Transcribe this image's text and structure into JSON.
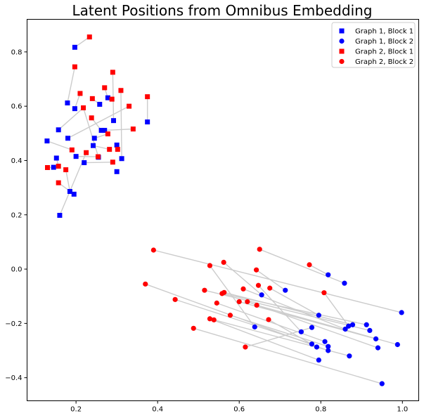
{
  "chart_data": {
    "type": "scatter",
    "title": "Latent Positions from Omnibus Embedding",
    "xlabel": "",
    "ylabel": "",
    "xlim": [
      0.08,
      1.04
    ],
    "ylim": [
      -0.485,
      0.92
    ],
    "x_ticks": [
      "0.2",
      "0.4",
      "0.6",
      "0.8",
      "1.0"
    ],
    "x_tick_values": [
      0.2,
      0.4,
      0.6,
      0.8,
      1.0
    ],
    "y_ticks": [
      "−0.4",
      "−0.2",
      "0.0",
      "0.2",
      "0.4",
      "0.6",
      "0.8"
    ],
    "y_tick_values": [
      -0.4,
      -0.2,
      0.0,
      0.2,
      0.4,
      0.6,
      0.8
    ],
    "grid": false,
    "legend_position": "top-right",
    "link_color": "#cccccc",
    "series": [
      {
        "name": "Graph 1, Block 1",
        "color": "#0000ff",
        "marker": "square",
        "points": [
          [
            0.197,
            0.817
          ],
          [
            0.179,
            0.612
          ],
          [
            0.197,
            0.591
          ],
          [
            0.157,
            0.513
          ],
          [
            0.18,
            0.482
          ],
          [
            0.129,
            0.472
          ],
          [
            0.152,
            0.409
          ],
          [
            0.145,
            0.375
          ],
          [
            0.185,
            0.286
          ],
          [
            0.195,
            0.276
          ],
          [
            0.16,
            0.198
          ],
          [
            0.2,
            0.415
          ],
          [
            0.22,
            0.392
          ],
          [
            0.242,
            0.455
          ],
          [
            0.245,
            0.482
          ],
          [
            0.258,
            0.607
          ],
          [
            0.262,
            0.511
          ],
          [
            0.27,
            0.511
          ],
          [
            0.278,
            0.631
          ],
          [
            0.255,
            0.412
          ],
          [
            0.292,
            0.547
          ],
          [
            0.3,
            0.457
          ],
          [
            0.312,
            0.407
          ],
          [
            0.3,
            0.359
          ],
          [
            0.375,
            0.542
          ]
        ]
      },
      {
        "name": "Graph 1, Block 2",
        "color": "#0000ff",
        "marker": "circle",
        "points": [
          [
            0.818,
            -0.021
          ],
          [
            0.858,
            -0.052
          ],
          [
            0.713,
            -0.078
          ],
          [
            0.655,
            -0.095
          ],
          [
            0.795,
            -0.17
          ],
          [
            0.638,
            -0.213
          ],
          [
            0.752,
            -0.231
          ],
          [
            0.778,
            -0.215
          ],
          [
            0.86,
            -0.221
          ],
          [
            0.868,
            -0.21
          ],
          [
            0.878,
            -0.205
          ],
          [
            0.912,
            -0.205
          ],
          [
            0.92,
            -0.226
          ],
          [
            0.935,
            -0.257
          ],
          [
            0.94,
            -0.29
          ],
          [
            0.998,
            -0.16
          ],
          [
            0.988,
            -0.278
          ],
          [
            0.81,
            -0.267
          ],
          [
            0.818,
            -0.285
          ],
          [
            0.818,
            -0.3
          ],
          [
            0.778,
            -0.276
          ],
          [
            0.79,
            -0.287
          ],
          [
            0.87,
            -0.32
          ],
          [
            0.795,
            -0.335
          ],
          [
            0.95,
            -0.422
          ]
        ]
      },
      {
        "name": "Graph 2, Block 1",
        "color": "#ff0000",
        "marker": "square",
        "points": [
          [
            0.233,
            0.855
          ],
          [
            0.197,
            0.745
          ],
          [
            0.29,
            0.725
          ],
          [
            0.21,
            0.647
          ],
          [
            0.218,
            0.594
          ],
          [
            0.24,
            0.628
          ],
          [
            0.27,
            0.668
          ],
          [
            0.31,
            0.658
          ],
          [
            0.288,
            0.626
          ],
          [
            0.33,
            0.6
          ],
          [
            0.375,
            0.635
          ],
          [
            0.34,
            0.516
          ],
          [
            0.238,
            0.557
          ],
          [
            0.278,
            0.498
          ],
          [
            0.282,
            0.441
          ],
          [
            0.302,
            0.441
          ],
          [
            0.29,
            0.394
          ],
          [
            0.254,
            0.414
          ],
          [
            0.225,
            0.429
          ],
          [
            0.19,
            0.439
          ],
          [
            0.13,
            0.374
          ],
          [
            0.157,
            0.379
          ],
          [
            0.175,
            0.366
          ],
          [
            0.157,
            0.318
          ]
        ]
      },
      {
        "name": "Graph 2, Block 2",
        "color": "#ff0000",
        "marker": "circle",
        "points": [
          [
            0.39,
            0.07
          ],
          [
            0.65,
            0.073
          ],
          [
            0.772,
            0.016
          ],
          [
            0.528,
            0.013
          ],
          [
            0.562,
            0.025
          ],
          [
            0.642,
            -0.003
          ],
          [
            0.37,
            -0.055
          ],
          [
            0.515,
            -0.078
          ],
          [
            0.558,
            -0.09
          ],
          [
            0.563,
            -0.086
          ],
          [
            0.61,
            -0.073
          ],
          [
            0.647,
            -0.06
          ],
          [
            0.675,
            -0.07
          ],
          [
            0.808,
            -0.087
          ],
          [
            0.443,
            -0.112
          ],
          [
            0.545,
            -0.125
          ],
          [
            0.6,
            -0.12
          ],
          [
            0.62,
            -0.12
          ],
          [
            0.643,
            -0.133
          ],
          [
            0.578,
            -0.17
          ],
          [
            0.528,
            -0.183
          ],
          [
            0.538,
            -0.187
          ],
          [
            0.672,
            -0.186
          ],
          [
            0.488,
            -0.218
          ],
          [
            0.615,
            -0.287
          ]
        ]
      }
    ],
    "links": [
      [
        [
          0.197,
          0.817
        ],
        [
          0.233,
          0.855
        ]
      ],
      [
        [
          0.179,
          0.612
        ],
        [
          0.197,
          0.745
        ]
      ],
      [
        [
          0.197,
          0.591
        ],
        [
          0.21,
          0.647
        ]
      ],
      [
        [
          0.157,
          0.513
        ],
        [
          0.218,
          0.594
        ]
      ],
      [
        [
          0.129,
          0.472
        ],
        [
          0.19,
          0.439
        ]
      ],
      [
        [
          0.152,
          0.409
        ],
        [
          0.157,
          0.379
        ]
      ],
      [
        [
          0.145,
          0.375
        ],
        [
          0.13,
          0.374
        ]
      ],
      [
        [
          0.185,
          0.286
        ],
        [
          0.175,
          0.366
        ]
      ],
      [
        [
          0.195,
          0.276
        ],
        [
          0.157,
          0.318
        ]
      ],
      [
        [
          0.16,
          0.198
        ],
        [
          0.225,
          0.429
        ]
      ],
      [
        [
          0.2,
          0.415
        ],
        [
          0.254,
          0.414
        ]
      ],
      [
        [
          0.22,
          0.392
        ],
        [
          0.29,
          0.394
        ]
      ],
      [
        [
          0.242,
          0.455
        ],
        [
          0.282,
          0.441
        ]
      ],
      [
        [
          0.245,
          0.482
        ],
        [
          0.278,
          0.498
        ]
      ],
      [
        [
          0.258,
          0.607
        ],
        [
          0.24,
          0.628
        ]
      ],
      [
        [
          0.262,
          0.511
        ],
        [
          0.238,
          0.557
        ]
      ],
      [
        [
          0.27,
          0.511
        ],
        [
          0.34,
          0.516
        ]
      ],
      [
        [
          0.278,
          0.631
        ],
        [
          0.27,
          0.668
        ]
      ],
      [
        [
          0.292,
          0.547
        ],
        [
          0.29,
          0.725
        ]
      ],
      [
        [
          0.3,
          0.457
        ],
        [
          0.302,
          0.441
        ]
      ],
      [
        [
          0.312,
          0.407
        ],
        [
          0.31,
          0.658
        ]
      ],
      [
        [
          0.375,
          0.542
        ],
        [
          0.375,
          0.635
        ]
      ],
      [
        [
          0.18,
          0.482
        ],
        [
          0.33,
          0.6
        ]
      ],
      [
        [
          0.278,
          0.631
        ],
        [
          0.288,
          0.626
        ]
      ],
      [
        [
          0.255,
          0.412
        ],
        [
          0.218,
          0.594
        ]
      ],
      [
        [
          0.818,
          -0.021
        ],
        [
          0.772,
          0.016
        ]
      ],
      [
        [
          0.858,
          -0.052
        ],
        [
          0.65,
          0.073
        ]
      ],
      [
        [
          0.713,
          -0.078
        ],
        [
          0.642,
          -0.003
        ]
      ],
      [
        [
          0.655,
          -0.095
        ],
        [
          0.562,
          0.025
        ]
      ],
      [
        [
          0.795,
          -0.17
        ],
        [
          0.675,
          -0.07
        ]
      ],
      [
        [
          0.638,
          -0.213
        ],
        [
          0.528,
          0.013
        ]
      ],
      [
        [
          0.752,
          -0.231
        ],
        [
          0.647,
          -0.06
        ]
      ],
      [
        [
          0.86,
          -0.221
        ],
        [
          0.61,
          -0.073
        ]
      ],
      [
        [
          0.868,
          -0.21
        ],
        [
          0.808,
          -0.087
        ]
      ],
      [
        [
          0.878,
          -0.205
        ],
        [
          0.563,
          -0.086
        ]
      ],
      [
        [
          0.912,
          -0.205
        ],
        [
          0.558,
          -0.09
        ]
      ],
      [
        [
          0.92,
          -0.226
        ],
        [
          0.515,
          -0.078
        ]
      ],
      [
        [
          0.935,
          -0.257
        ],
        [
          0.6,
          -0.12
        ]
      ],
      [
        [
          0.94,
          -0.29
        ],
        [
          0.62,
          -0.12
        ]
      ],
      [
        [
          0.998,
          -0.16
        ],
        [
          0.39,
          0.07
        ]
      ],
      [
        [
          0.988,
          -0.278
        ],
        [
          0.643,
          -0.133
        ]
      ],
      [
        [
          0.81,
          -0.267
        ],
        [
          0.545,
          -0.125
        ]
      ],
      [
        [
          0.818,
          -0.285
        ],
        [
          0.578,
          -0.17
        ]
      ],
      [
        [
          0.818,
          -0.3
        ],
        [
          0.37,
          -0.055
        ]
      ],
      [
        [
          0.778,
          -0.276
        ],
        [
          0.443,
          -0.112
        ]
      ],
      [
        [
          0.79,
          -0.287
        ],
        [
          0.672,
          -0.186
        ]
      ],
      [
        [
          0.87,
          -0.32
        ],
        [
          0.538,
          -0.187
        ]
      ],
      [
        [
          0.795,
          -0.335
        ],
        [
          0.528,
          -0.183
        ]
      ],
      [
        [
          0.95,
          -0.422
        ],
        [
          0.488,
          -0.218
        ]
      ],
      [
        [
          0.778,
          -0.215
        ],
        [
          0.615,
          -0.287
        ]
      ]
    ]
  }
}
